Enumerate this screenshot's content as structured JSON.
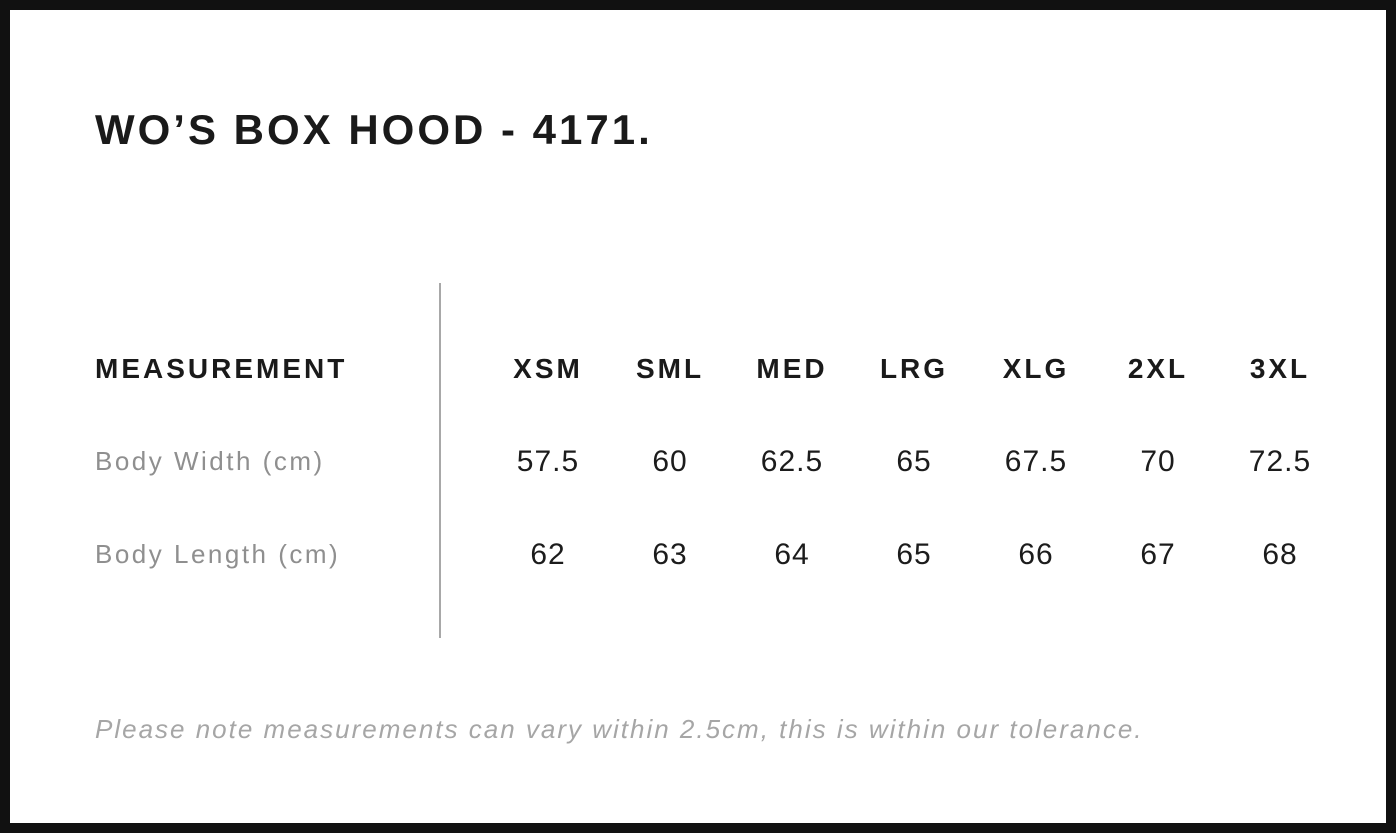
{
  "page": {
    "title": "WO’S BOX HOOD - 4171.",
    "footnote": "Please note measurements can vary within 2.5cm, this is within our tolerance."
  },
  "table": {
    "header_label": "MEASUREMENT",
    "size_headers": [
      "XSM",
      "SML",
      "MED",
      "LRG",
      "XLG",
      "2XL",
      "3XL"
    ],
    "rows": [
      {
        "label": "Body Width (cm)",
        "values": [
          "57.5",
          "60",
          "62.5",
          "65",
          "67.5",
          "70",
          "72.5"
        ]
      },
      {
        "label": "Body Length (cm)",
        "values": [
          "62",
          "63",
          "64",
          "65",
          "66",
          "67",
          "68"
        ]
      }
    ]
  },
  "chart_data": {
    "type": "table",
    "title": "WO’S BOX HOOD - 4171.",
    "columns": [
      "MEASUREMENT",
      "XSM",
      "SML",
      "MED",
      "LRG",
      "XLG",
      "2XL",
      "3XL"
    ],
    "rows": [
      {
        "label": "Body Width (cm)",
        "values": [
          57.5,
          60,
          62.5,
          65,
          67.5,
          70,
          72.5
        ]
      },
      {
        "label": "Body Length (cm)",
        "values": [
          62,
          63,
          64,
          65,
          66,
          67,
          68
        ]
      }
    ],
    "note": "Please note measurements can vary within 2.5cm, this is within our tolerance."
  },
  "colors": {
    "frame": "#111111",
    "background": "#ffffff",
    "text_primary": "#1a1a1a",
    "text_muted": "#8f8f8f",
    "footnote": "#a6a6a6",
    "divider": "#a8a8a8"
  }
}
